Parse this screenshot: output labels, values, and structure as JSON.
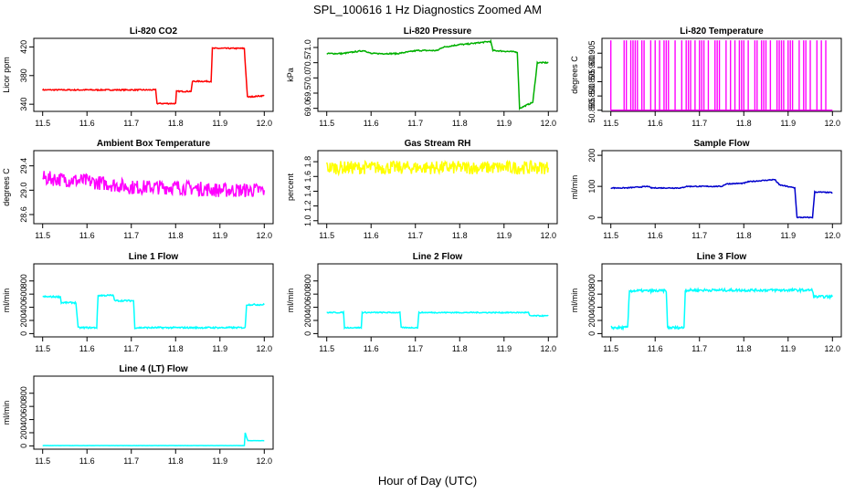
{
  "figure": {
    "title": "SPL_100616  1 Hz Diagnostics Zoomed AM",
    "xlabel": "Hour of Day (UTC)"
  },
  "chart_data": [
    {
      "type": "line",
      "title": "Li-820 CO2",
      "ylabel": "Licor ppm",
      "color": "#ff0000",
      "xlim": [
        11.48,
        12.02
      ],
      "ylim": [
        330,
        432
      ],
      "xticks": [
        11.5,
        11.6,
        11.7,
        11.8,
        11.9,
        12.0
      ],
      "xtick_labels": [
        "11.5",
        "11.6",
        "11.7",
        "11.8",
        "11.9",
        "12.0"
      ],
      "yticks": [
        340,
        380,
        420
      ],
      "ytick_labels": [
        "340",
        "380",
        "420"
      ],
      "x": [
        11.5,
        11.755,
        11.758,
        11.8,
        11.802,
        11.835,
        11.838,
        11.88,
        11.883,
        11.955,
        11.962,
        12.0
      ],
      "y": [
        360,
        360,
        341,
        341,
        358,
        358,
        372,
        372,
        418,
        418,
        350,
        352
      ],
      "noise": 0.8
    },
    {
      "type": "line",
      "title": "Li-820 Pressure",
      "ylabel": "kPa",
      "color": "#00b000",
      "xlim": [
        11.48,
        12.02
      ],
      "ylim": [
        68.9,
        71.3
      ],
      "xticks": [
        11.5,
        11.6,
        11.7,
        11.8,
        11.9,
        12.0
      ],
      "xtick_labels": [
        "11.5",
        "11.6",
        "11.7",
        "11.8",
        "11.9",
        "12.0"
      ],
      "yticks": [
        69.0,
        69.5,
        70.0,
        70.5,
        71.0
      ],
      "ytick_labels": [
        "69.0",
        "69.5",
        "70.0",
        "70.5",
        "71.0"
      ],
      "x": [
        11.5,
        11.535,
        11.585,
        11.6,
        11.66,
        11.705,
        11.75,
        11.76,
        11.8,
        11.81,
        11.87,
        11.875,
        11.93,
        11.935,
        11.965,
        11.975,
        12.0
      ],
      "y": [
        70.8,
        70.8,
        70.9,
        70.8,
        70.8,
        70.9,
        70.9,
        71.0,
        71.1,
        71.1,
        71.2,
        70.9,
        70.85,
        69.0,
        69.2,
        70.5,
        70.5
      ],
      "noise": 0.02
    },
    {
      "type": "spikes",
      "title": "Li-820 Temperature",
      "ylabel": "degrees C",
      "color": "#ff00ff",
      "xlim": [
        11.48,
        12.02
      ],
      "ylim": [
        50.8846,
        50.9102
      ],
      "xticks": [
        11.5,
        11.6,
        11.7,
        11.8,
        11.9,
        12.0
      ],
      "xtick_labels": [
        "11.5",
        "11.6",
        "11.7",
        "11.8",
        "11.9",
        "12.0"
      ],
      "yticks": [
        50.885,
        50.89,
        50.895,
        50.9,
        50.905
      ],
      "ytick_labels": [
        "50.885",
        "50.890",
        "50.895",
        "50.900",
        "50.905"
      ],
      "baseline": 50.885,
      "peak": 50.9095,
      "spike_x": [
        11.5,
        11.53,
        11.535,
        11.545,
        11.55,
        11.555,
        11.56,
        11.57,
        11.575,
        11.59,
        11.6,
        11.61,
        11.62,
        11.625,
        11.63,
        11.645,
        11.66,
        11.67,
        11.675,
        11.68,
        11.69,
        11.7,
        11.705,
        11.71,
        11.72,
        11.735,
        11.74,
        11.745,
        11.76,
        11.77,
        11.78,
        11.79,
        11.795,
        11.8,
        11.81,
        11.825,
        11.83,
        11.84,
        11.845,
        11.85,
        11.86,
        11.875,
        11.88,
        11.885,
        11.89,
        11.9,
        11.905,
        11.91,
        11.925,
        11.935,
        11.94,
        11.95,
        11.965,
        11.975,
        11.985
      ]
    },
    {
      "type": "line",
      "title": "Ambient Box Temperature",
      "ylabel": "degrees C",
      "color": "#ff00ff",
      "xlim": [
        11.48,
        12.02
      ],
      "ylim": [
        28.45,
        29.65
      ],
      "xticks": [
        11.5,
        11.6,
        11.7,
        11.8,
        11.9,
        12.0
      ],
      "xtick_labels": [
        "11.5",
        "11.6",
        "11.7",
        "11.8",
        "11.9",
        "12.0"
      ],
      "yticks": [
        28.6,
        29.0,
        29.4
      ],
      "ytick_labels": [
        "28.6",
        "29.0",
        "29.4"
      ],
      "x": [
        11.5,
        11.6,
        11.7,
        11.8,
        11.9,
        12.0
      ],
      "y": [
        29.2,
        29.15,
        29.05,
        29.05,
        29.0,
        29.0
      ],
      "noise": 0.12
    },
    {
      "type": "line",
      "title": "Gas Stream RH",
      "ylabel": "percent",
      "color": "#ffff00",
      "xlim": [
        11.48,
        12.02
      ],
      "ylim": [
        0.96,
        1.95
      ],
      "xticks": [
        11.5,
        11.6,
        11.7,
        11.8,
        11.9,
        12.0
      ],
      "xtick_labels": [
        "11.5",
        "11.6",
        "11.7",
        "11.8",
        "11.9",
        "12.0"
      ],
      "yticks": [
        1.0,
        1.2,
        1.4,
        1.6,
        1.8
      ],
      "ytick_labels": [
        "1.0",
        "1.2",
        "1.4",
        "1.6",
        "1.8"
      ],
      "x": [
        11.5,
        11.6,
        11.7,
        11.8,
        11.9,
        12.0
      ],
      "y": [
        1.72,
        1.72,
        1.72,
        1.72,
        1.72,
        1.72
      ],
      "noise": 0.09
    },
    {
      "type": "line",
      "title": "Sample Flow",
      "ylabel": "ml/min",
      "color": "#0000cc",
      "xlim": [
        11.48,
        12.02
      ],
      "ylim": [
        -20,
        215
      ],
      "xticks": [
        11.5,
        11.6,
        11.7,
        11.8,
        11.9,
        12.0
      ],
      "xtick_labels": [
        "11.5",
        "11.6",
        "11.7",
        "11.8",
        "11.9",
        "12.0"
      ],
      "yticks": [
        0,
        100,
        200
      ],
      "ytick_labels": [
        "0",
        "100",
        "200"
      ],
      "x": [
        11.5,
        11.535,
        11.585,
        11.59,
        11.66,
        11.67,
        11.75,
        11.76,
        11.8,
        11.81,
        11.87,
        11.88,
        11.915,
        11.92,
        11.955,
        11.96,
        12.0
      ],
      "y": [
        95,
        95,
        100,
        95,
        95,
        100,
        100,
        108,
        110,
        115,
        122,
        105,
        95,
        0,
        0,
        82,
        80
      ],
      "noise": 1.5
    },
    {
      "type": "line",
      "title": "Line 1 Flow",
      "ylabel": "ml/min",
      "color": "#00ffff",
      "xlim": [
        11.48,
        12.02
      ],
      "ylim": [
        -50,
        1060
      ],
      "xticks": [
        11.5,
        11.6,
        11.7,
        11.8,
        11.9,
        12.0
      ],
      "xtick_labels": [
        "11.5",
        "11.6",
        "11.7",
        "11.8",
        "11.9",
        "12.0"
      ],
      "yticks": [
        0,
        200,
        400,
        600,
        800
      ],
      "ytick_labels": [
        "0",
        "200",
        "400",
        "600",
        "800"
      ],
      "x": [
        11.5,
        11.54,
        11.542,
        11.575,
        11.58,
        11.622,
        11.625,
        11.66,
        11.662,
        11.705,
        11.708,
        11.957,
        11.96,
        12.0
      ],
      "y": [
        560,
        560,
        470,
        470,
        90,
        90,
        580,
        580,
        500,
        500,
        90,
        90,
        440,
        440
      ],
      "noise": 12
    },
    {
      "type": "line",
      "title": "Line 2 Flow",
      "ylabel": "ml/min",
      "color": "#00ffff",
      "xlim": [
        11.48,
        12.02
      ],
      "ylim": [
        -50,
        1060
      ],
      "xticks": [
        11.5,
        11.6,
        11.7,
        11.8,
        11.9,
        12.0
      ],
      "xtick_labels": [
        "11.5",
        "11.6",
        "11.7",
        "11.8",
        "11.9",
        "12.0"
      ],
      "yticks": [
        0,
        200,
        400,
        600,
        800
      ],
      "ytick_labels": [
        "0",
        "200",
        "400",
        "600",
        "800"
      ],
      "x": [
        11.5,
        11.538,
        11.54,
        11.578,
        11.58,
        11.665,
        11.668,
        11.705,
        11.708,
        11.955,
        11.958,
        12.0
      ],
      "y": [
        320,
        320,
        90,
        90,
        320,
        320,
        90,
        90,
        320,
        320,
        270,
        270
      ],
      "noise": 8
    },
    {
      "type": "line",
      "title": "Line 3 Flow",
      "ylabel": "ml/min",
      "color": "#00ffff",
      "xlim": [
        11.48,
        12.02
      ],
      "ylim": [
        -50,
        1060
      ],
      "xticks": [
        11.5,
        11.6,
        11.7,
        11.8,
        11.9,
        12.0
      ],
      "xtick_labels": [
        "11.5",
        "11.6",
        "11.7",
        "11.8",
        "11.9",
        "12.0"
      ],
      "yticks": [
        0,
        200,
        400,
        600,
        800
      ],
      "ytick_labels": [
        "0",
        "200",
        "400",
        "600",
        "800"
      ],
      "x": [
        11.5,
        11.538,
        11.542,
        11.625,
        11.628,
        11.665,
        11.668,
        11.955,
        11.958,
        12.0
      ],
      "y": [
        90,
        90,
        650,
        650,
        90,
        90,
        660,
        660,
        560,
        560
      ],
      "noise": 20
    },
    {
      "type": "line",
      "title": "Line 4 (LT) Flow",
      "ylabel": "ml/min",
      "color": "#00ffff",
      "xlim": [
        11.48,
        12.02
      ],
      "ylim": [
        -50,
        1060
      ],
      "xticks": [
        11.5,
        11.6,
        11.7,
        11.8,
        11.9,
        12.0
      ],
      "xtick_labels": [
        "11.5",
        "11.6",
        "11.7",
        "11.8",
        "11.9",
        "12.0"
      ],
      "yticks": [
        0,
        200,
        400,
        600,
        800
      ],
      "ytick_labels": [
        "0",
        "200",
        "400",
        "600",
        "800"
      ],
      "x": [
        11.5,
        11.955,
        11.957,
        11.96,
        11.963,
        12.0
      ],
      "y": [
        5,
        5,
        200,
        130,
        80,
        80
      ],
      "noise": 1
    }
  ]
}
